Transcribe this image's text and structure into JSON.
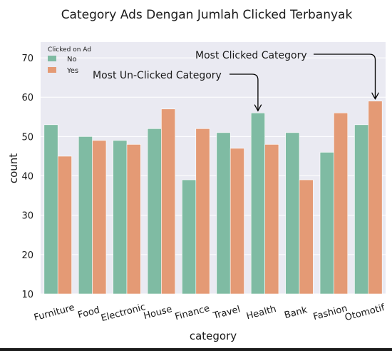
{
  "chart_data": {
    "type": "bar",
    "title": "Category Ads Dengan Jumlah Clicked Terbanyak",
    "xlabel": "category",
    "ylabel": "count",
    "ylim": [
      10,
      74
    ],
    "yticks": [
      10,
      20,
      30,
      40,
      50,
      60,
      70
    ],
    "categories": [
      "Furniture",
      "Food",
      "Electronic",
      "House",
      "Finance",
      "Travel",
      "Health",
      "Bank",
      "Fashion",
      "Otomotif"
    ],
    "legend": {
      "title": "Clicked on Ad",
      "placement": "top-left"
    },
    "series": [
      {
        "name": "No",
        "color": "#7fbba3",
        "values": [
          53,
          50,
          49,
          52,
          39,
          51,
          56,
          51,
          46,
          53
        ]
      },
      {
        "name": "Yes",
        "color": "#e49a75",
        "values": [
          45,
          49,
          48,
          57,
          52,
          47,
          48,
          39,
          56,
          59
        ]
      }
    ],
    "annotations": [
      {
        "text": "Most Clicked Category",
        "category": "Otomotif",
        "series": "Yes",
        "value": 59
      },
      {
        "text": "Most Un-Clicked Category",
        "category": "Health",
        "series": "No",
        "value": 56
      }
    ],
    "grid": true,
    "background": "#eaeaf2"
  }
}
